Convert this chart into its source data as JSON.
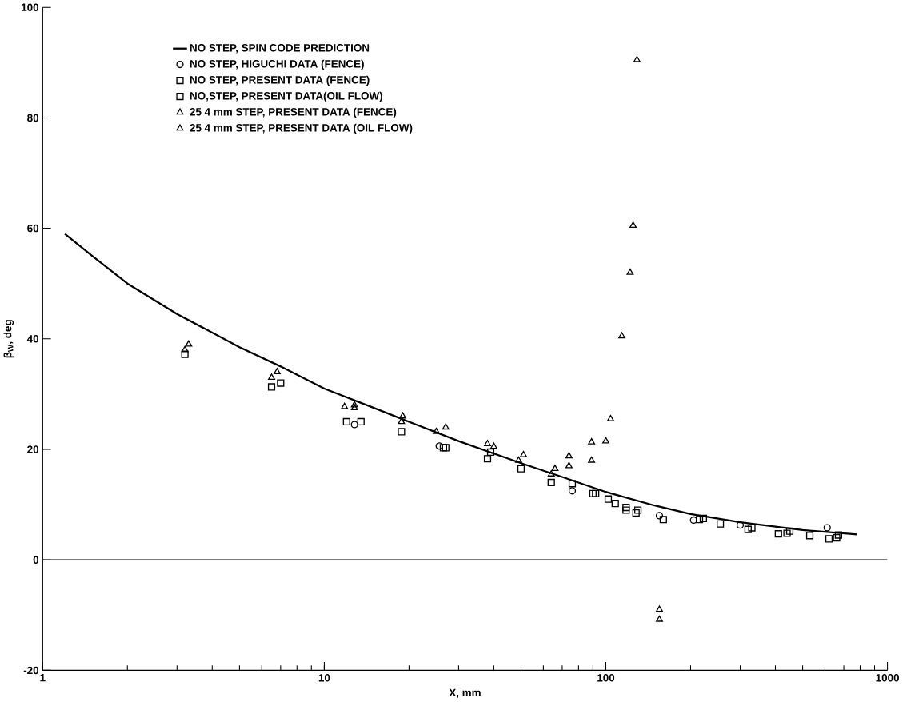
{
  "chart_data": {
    "type": "scatter",
    "xlabel": "X, mm",
    "ylabel": "β$_{W}$, deg",
    "log": "x",
    "xlim": [
      1,
      1000
    ],
    "xticks": [
      1,
      10,
      100,
      1000
    ],
    "ylim": [
      -20,
      100
    ],
    "yticks": [
      -20,
      0,
      20,
      40,
      60,
      80,
      100
    ],
    "grid": false,
    "legend": "top left",
    "ref_lines": [
      {
        "axis": "y",
        "value": 0,
        "color": "#000000"
      }
    ],
    "series": [
      {
        "name": "NO STEP, SPIN CODE PREDICTION",
        "type": "line",
        "color": "#000000",
        "marker": "none",
        "line_style": "solid",
        "x": [
          1.2,
          1.5,
          2,
          3,
          5,
          7,
          10,
          15,
          20,
          30,
          50,
          70,
          100,
          150,
          200,
          300,
          500,
          780
        ],
        "values": [
          59,
          55,
          50,
          44.5,
          38.5,
          35,
          31,
          27.5,
          25,
          21.5,
          17.5,
          15,
          12.3,
          9.8,
          8.3,
          6.8,
          5.4,
          4.6
        ]
      },
      {
        "name": "NO STEP, HIGUCHI DATA (FENCE)",
        "color": "#000000",
        "marker": "circle",
        "x": [
          12.8,
          25.6,
          76,
          155,
          205,
          300,
          611
        ],
        "values": [
          24.5,
          20.6,
          12.5,
          8,
          7.2,
          6.3,
          5.8
        ]
      },
      {
        "name": "NO STEP, PRESENT DATA (FENCE)",
        "color": "#000000",
        "marker": "square",
        "x": [
          3.2,
          6.5,
          12,
          18.8,
          26.5,
          38,
          50,
          64,
          76,
          90,
          102,
          108,
          118,
          128,
          160,
          215,
          255,
          320,
          410,
          440,
          530,
          620,
          660
        ],
        "values": [
          37.2,
          31.3,
          25,
          23.2,
          20.3,
          18.3,
          16.5,
          14,
          13.8,
          12,
          11,
          10.2,
          9,
          8.5,
          7.3,
          7.3,
          6.5,
          5.5,
          4.7,
          4.8,
          4.4,
          3.8,
          4
        ]
      },
      {
        "name": "NO,STEP, PRESENT DATA(OIL FLOW)",
        "color": "#000000",
        "marker": "square",
        "x": [
          7,
          13.5,
          27,
          39,
          92,
          118,
          130,
          222,
          330,
          450,
          670
        ],
        "values": [
          32,
          25,
          20.3,
          19.5,
          12,
          9.5,
          9,
          7.5,
          5.8,
          5.2,
          4.5
        ]
      },
      {
        "name": "25 4 mm STEP, PRESENT DATA (FENCE)",
        "color": "#000000",
        "marker": "triangle",
        "x": [
          3.2,
          6.5,
          11.8,
          12.8,
          18.8,
          25,
          38,
          49,
          64,
          74,
          89,
          100,
          122,
          155,
          155
        ],
        "values": [
          38,
          33,
          27.7,
          27.5,
          25,
          23.2,
          21,
          18,
          15.5,
          17,
          18,
          21.5,
          52,
          -9,
          -10.8
        ]
      },
      {
        "name": "25 4 mm STEP, PRESENT DATA (OIL FLOW)",
        "color": "#000000",
        "marker": "triangle",
        "x": [
          3.3,
          6.8,
          12.8,
          19,
          27,
          40,
          51,
          66,
          74,
          89,
          104,
          114,
          125,
          129
        ],
        "values": [
          39,
          34,
          28,
          26,
          24,
          20.5,
          19,
          16.5,
          18.8,
          21.3,
          25.5,
          40.5,
          60.5,
          90.5
        ]
      }
    ]
  }
}
